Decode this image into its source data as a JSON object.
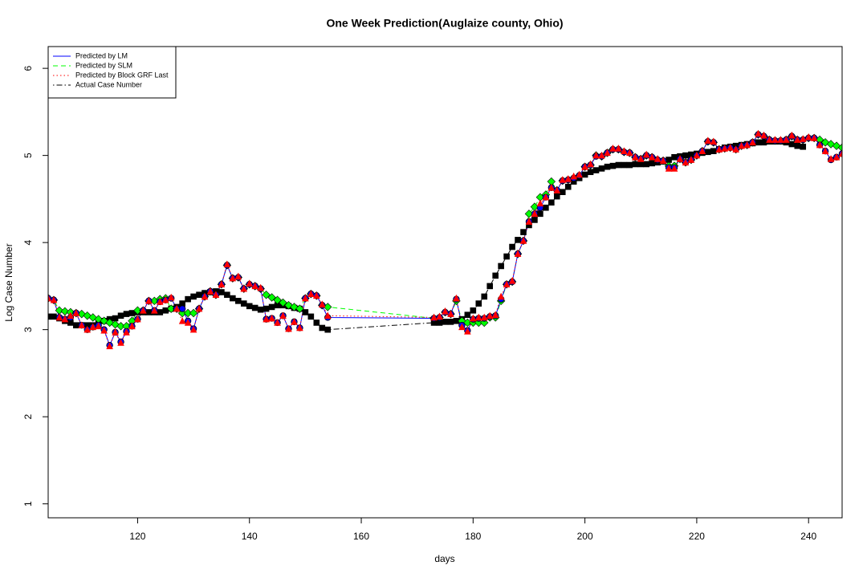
{
  "chart_data": {
    "type": "line",
    "title": "One Week Prediction(Auglaize county, Ohio)",
    "x_label": "days",
    "y_label": "Log Case Number",
    "x": [
      104,
      105,
      106,
      107,
      108,
      109,
      110,
      111,
      112,
      113,
      114,
      115,
      116,
      117,
      118,
      119,
      120,
      121,
      122,
      123,
      124,
      125,
      126,
      127,
      128,
      129,
      130,
      131,
      132,
      133,
      134,
      135,
      136,
      137,
      138,
      139,
      140,
      141,
      142,
      143,
      144,
      145,
      146,
      147,
      148,
      149,
      150,
      151,
      152,
      153,
      154,
      173,
      174,
      175,
      176,
      177,
      178,
      179,
      180,
      181,
      182,
      183,
      184,
      185,
      186,
      187,
      188,
      189,
      190,
      191,
      192,
      193,
      194,
      195,
      196,
      197,
      198,
      199,
      200,
      201,
      202,
      203,
      204,
      205,
      206,
      207,
      208,
      209,
      210,
      211,
      212,
      213,
      214,
      215,
      216,
      217,
      218,
      219,
      220,
      221,
      222,
      223,
      224,
      225,
      226,
      227,
      228,
      229,
      230,
      231,
      232,
      233,
      234,
      235,
      236,
      237,
      238,
      239,
      240,
      241,
      242,
      243,
      244,
      245,
      246
    ],
    "series": [
      {
        "name": "Predicted by LM",
        "color": "#0000ff",
        "marker": "circle",
        "dash": "solid",
        "values": [
          3.36,
          3.34,
          3.14,
          3.12,
          3.14,
          3.19,
          3.05,
          3.0,
          3.03,
          3.05,
          3.0,
          2.82,
          2.97,
          2.86,
          2.98,
          3.04,
          3.12,
          3.22,
          3.33,
          3.22,
          3.32,
          3.34,
          3.36,
          3.24,
          3.24,
          3.1,
          3.01,
          3.24,
          3.38,
          3.44,
          3.4,
          3.52,
          3.74,
          3.59,
          3.6,
          3.47,
          3.52,
          3.5,
          3.47,
          3.12,
          3.13,
          3.08,
          3.16,
          3.01,
          3.09,
          3.02,
          3.36,
          3.41,
          3.39,
          3.28,
          3.14,
          3.13,
          3.14,
          3.2,
          3.18,
          3.35,
          3.05,
          2.99,
          3.12,
          3.13,
          3.13,
          3.15,
          3.16,
          3.35,
          3.52,
          3.55,
          3.87,
          4.02,
          4.24,
          4.33,
          4.4,
          4.52,
          4.63,
          4.6,
          4.71,
          4.72,
          4.74,
          4.77,
          4.87,
          4.89,
          4.99,
          4.99,
          5.03,
          5.07,
          5.07,
          5.04,
          5.03,
          4.98,
          4.96,
          5.0,
          4.98,
          4.95,
          4.94,
          4.86,
          4.86,
          4.96,
          4.92,
          4.95,
          5.0,
          5.05,
          5.16,
          5.15,
          5.07,
          5.08,
          5.09,
          5.07,
          5.11,
          5.12,
          5.15,
          5.24,
          5.22,
          5.18,
          5.17,
          5.17,
          5.18,
          5.22,
          5.18,
          5.18,
          5.2,
          5.2,
          5.12,
          5.05,
          4.95,
          4.98,
          5.02
        ]
      },
      {
        "name": "Predicted by SLM",
        "color": "#00ff00",
        "marker": "diamond",
        "dash": "dashed",
        "values": [
          3.36,
          3.34,
          3.22,
          3.21,
          3.2,
          3.19,
          3.18,
          3.16,
          3.14,
          3.12,
          3.1,
          3.08,
          3.06,
          3.04,
          3.04,
          3.1,
          3.22,
          3.22,
          3.33,
          3.33,
          3.35,
          3.36,
          3.24,
          3.24,
          3.19,
          3.19,
          3.19,
          3.24,
          3.38,
          3.44,
          3.4,
          3.52,
          3.74,
          3.59,
          3.6,
          3.47,
          3.52,
          3.5,
          3.47,
          3.4,
          3.37,
          3.34,
          3.31,
          3.28,
          3.26,
          3.24,
          3.36,
          3.41,
          3.39,
          3.28,
          3.26,
          3.13,
          3.14,
          3.2,
          3.18,
          3.33,
          3.1,
          3.08,
          3.08,
          3.08,
          3.08,
          3.14,
          3.14,
          3.33,
          3.52,
          3.55,
          3.87,
          4.02,
          4.33,
          4.41,
          4.52,
          4.55,
          4.7,
          4.6,
          4.71,
          4.72,
          4.74,
          4.77,
          4.87,
          4.89,
          5.0,
          4.99,
          5.03,
          5.07,
          5.07,
          5.04,
          5.03,
          4.98,
          4.96,
          5.0,
          4.98,
          4.95,
          4.94,
          4.88,
          4.88,
          4.96,
          4.92,
          4.95,
          5.0,
          5.05,
          5.16,
          5.15,
          5.07,
          5.08,
          5.09,
          5.07,
          5.11,
          5.12,
          5.15,
          5.24,
          5.22,
          5.18,
          5.17,
          5.17,
          5.18,
          5.22,
          5.18,
          5.18,
          5.2,
          5.2,
          5.18,
          5.15,
          5.13,
          5.11,
          5.09
        ]
      },
      {
        "name": "Predicted by Block GRF Last",
        "color": "#ff0000",
        "marker": "triangle",
        "dash": "dotted",
        "values": [
          3.36,
          3.34,
          3.14,
          3.12,
          3.16,
          3.19,
          3.05,
          3.0,
          3.03,
          3.04,
          2.99,
          2.81,
          2.97,
          2.85,
          2.97,
          3.04,
          3.12,
          3.22,
          3.33,
          3.22,
          3.32,
          3.34,
          3.37,
          3.24,
          3.1,
          3.08,
          3.0,
          3.24,
          3.38,
          3.44,
          3.4,
          3.52,
          3.75,
          3.59,
          3.61,
          3.47,
          3.53,
          3.5,
          3.48,
          3.12,
          3.13,
          3.08,
          3.16,
          3.01,
          3.09,
          3.02,
          3.36,
          3.41,
          3.39,
          3.29,
          3.16,
          3.14,
          3.15,
          3.21,
          3.18,
          3.36,
          3.03,
          2.98,
          3.13,
          3.14,
          3.14,
          3.16,
          3.17,
          3.38,
          3.52,
          3.56,
          3.87,
          4.02,
          4.24,
          4.33,
          4.45,
          4.52,
          4.63,
          4.6,
          4.72,
          4.73,
          4.76,
          4.78,
          4.87,
          4.9,
          5.0,
          5.0,
          5.03,
          5.08,
          5.08,
          5.05,
          5.03,
          4.98,
          4.96,
          5.01,
          4.98,
          4.96,
          4.94,
          4.85,
          4.85,
          4.96,
          4.92,
          4.95,
          5.0,
          5.05,
          5.17,
          5.16,
          5.07,
          5.08,
          5.09,
          5.07,
          5.11,
          5.12,
          5.15,
          5.25,
          5.23,
          5.18,
          5.18,
          5.18,
          5.18,
          5.23,
          5.18,
          5.19,
          5.21,
          5.2,
          5.12,
          5.05,
          4.96,
          4.98,
          5.02
        ]
      },
      {
        "name": "Actual Case Number",
        "color": "#000000",
        "marker": "square",
        "dash": "dashdot",
        "values": [
          3.15,
          3.15,
          3.13,
          3.1,
          3.08,
          3.05,
          3.05,
          3.05,
          3.05,
          3.08,
          3.1,
          3.12,
          3.13,
          3.16,
          3.18,
          3.19,
          3.2,
          3.2,
          3.2,
          3.2,
          3.2,
          3.22,
          3.24,
          3.26,
          3.3,
          3.35,
          3.38,
          3.4,
          3.42,
          3.43,
          3.44,
          3.43,
          3.4,
          3.36,
          3.33,
          3.3,
          3.27,
          3.25,
          3.23,
          3.24,
          3.26,
          3.28,
          3.28,
          3.27,
          3.25,
          3.24,
          3.2,
          3.15,
          3.08,
          3.02,
          3.0,
          3.08,
          3.08,
          3.09,
          3.09,
          3.1,
          3.12,
          3.17,
          3.22,
          3.3,
          3.38,
          3.5,
          3.62,
          3.73,
          3.84,
          3.95,
          4.03,
          4.12,
          4.2,
          4.26,
          4.33,
          4.4,
          4.46,
          4.53,
          4.58,
          4.64,
          4.7,
          4.74,
          4.78,
          4.81,
          4.83,
          4.85,
          4.87,
          4.88,
          4.89,
          4.89,
          4.89,
          4.9,
          4.9,
          4.9,
          4.91,
          4.92,
          4.93,
          4.95,
          4.98,
          4.99,
          5.0,
          5.01,
          5.02,
          5.03,
          5.04,
          5.05,
          5.07,
          5.09,
          5.1,
          5.11,
          5.12,
          5.13,
          5.14,
          5.15,
          5.15,
          5.16,
          5.16,
          5.16,
          5.15,
          5.13,
          5.11,
          5.1,
          null,
          null,
          null,
          null,
          null,
          null,
          null
        ]
      }
    ],
    "xlim": [
      104,
      246
    ],
    "xticks": [
      120,
      140,
      160,
      180,
      200,
      220,
      240
    ],
    "ylim": [
      0.84,
      6.25
    ],
    "yticks": [
      1,
      2,
      3,
      4,
      5,
      6
    ],
    "grid": false,
    "legend": "topleft"
  }
}
